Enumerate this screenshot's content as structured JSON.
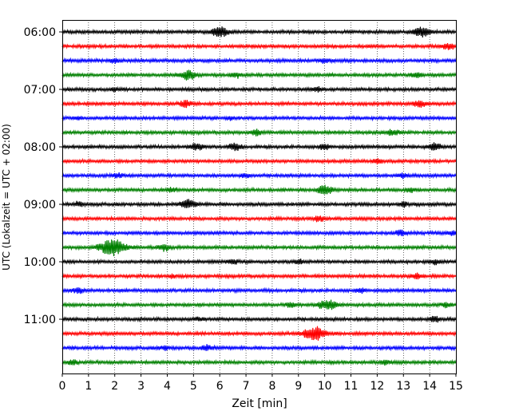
{
  "chart_data": {
    "type": "line",
    "subtype": "helicorder",
    "title": "",
    "xlabel": "Zeit  [min]",
    "ylabel": "UTC (Lokalzeit = UTC + 02:00)",
    "xlim": [
      0,
      15
    ],
    "x_ticks": [
      "0",
      "1",
      "2",
      "3",
      "4",
      "5",
      "6",
      "7",
      "8",
      "9",
      "10",
      "11",
      "12",
      "13",
      "14",
      "15"
    ],
    "y_ticks": [
      "06:00",
      "07:00",
      "08:00",
      "09:00",
      "10:00",
      "11:00"
    ],
    "start_time": "06:00",
    "trace_interval_min": 15,
    "colors": [
      "#000000",
      "#ff0000",
      "#0000ff",
      "#008000"
    ],
    "grid": "vertical dotted at each minute",
    "legend": "none",
    "traces": [
      {
        "start": "06:00",
        "color": "#000000",
        "events": [
          [
            6.0,
            1.0
          ],
          [
            13.7,
            0.9
          ]
        ]
      },
      {
        "start": "06:15",
        "color": "#ff0000",
        "events": [
          [
            14.7,
            0.6
          ]
        ]
      },
      {
        "start": "06:30",
        "color": "#0000ff",
        "events": [
          [
            2.0,
            0.4
          ],
          [
            10.0,
            0.4
          ]
        ]
      },
      {
        "start": "06:45",
        "color": "#008000",
        "events": [
          [
            4.8,
            0.9
          ],
          [
            6.6,
            0.5
          ],
          [
            13.5,
            0.5
          ]
        ]
      },
      {
        "start": "07:00",
        "color": "#000000",
        "events": [
          [
            2.0,
            0.3
          ],
          [
            9.7,
            0.4
          ]
        ]
      },
      {
        "start": "07:15",
        "color": "#ff0000",
        "events": [
          [
            4.7,
            0.6
          ],
          [
            13.6,
            0.6
          ]
        ]
      },
      {
        "start": "07:30",
        "color": "#0000ff",
        "events": [
          [
            0.6,
            0.3
          ],
          [
            6.4,
            0.3
          ]
        ]
      },
      {
        "start": "07:45",
        "color": "#008000",
        "events": [
          [
            7.4,
            0.5
          ],
          [
            12.6,
            0.5
          ]
        ]
      },
      {
        "start": "08:00",
        "color": "#000000",
        "events": [
          [
            5.1,
            0.6
          ],
          [
            6.6,
            0.6
          ],
          [
            10.0,
            0.5
          ],
          [
            14.2,
            0.6
          ]
        ]
      },
      {
        "start": "08:15",
        "color": "#ff0000",
        "events": [
          [
            12.0,
            0.4
          ]
        ]
      },
      {
        "start": "08:30",
        "color": "#0000ff",
        "events": [
          [
            2.1,
            0.4
          ],
          [
            7.0,
            0.4
          ],
          [
            13.0,
            0.4
          ]
        ]
      },
      {
        "start": "08:45",
        "color": "#008000",
        "events": [
          [
            10.0,
            0.8
          ],
          [
            4.2,
            0.4
          ],
          [
            13.3,
            0.4
          ]
        ]
      },
      {
        "start": "09:00",
        "color": "#000000",
        "events": [
          [
            4.8,
            0.8
          ],
          [
            0.6,
            0.4
          ],
          [
            13.0,
            0.4
          ]
        ]
      },
      {
        "start": "09:15",
        "color": "#ff0000",
        "events": [
          [
            9.8,
            0.5
          ]
        ]
      },
      {
        "start": "09:30",
        "color": "#0000ff",
        "events": [
          [
            12.9,
            0.5
          ],
          [
            14.9,
            0.4
          ]
        ]
      },
      {
        "start": "09:45",
        "color": "#008000",
        "events": [
          [
            1.9,
            1.6
          ],
          [
            3.9,
            0.6
          ]
        ]
      },
      {
        "start": "10:00",
        "color": "#000000",
        "events": [
          [
            6.5,
            0.4
          ],
          [
            9.0,
            0.4
          ],
          [
            14.2,
            0.4
          ]
        ]
      },
      {
        "start": "10:15",
        "color": "#ff0000",
        "events": [
          [
            4.2,
            0.3
          ],
          [
            13.5,
            0.4
          ]
        ]
      },
      {
        "start": "10:30",
        "color": "#0000ff",
        "events": [
          [
            0.6,
            0.5
          ],
          [
            11.4,
            0.4
          ]
        ]
      },
      {
        "start": "10:45",
        "color": "#008000",
        "events": [
          [
            10.1,
            1.0
          ],
          [
            8.7,
            0.4
          ],
          [
            14.6,
            0.4
          ]
        ]
      },
      {
        "start": "11:00",
        "color": "#000000",
        "events": [
          [
            14.2,
            0.5
          ],
          [
            5.2,
            0.3
          ]
        ]
      },
      {
        "start": "11:15",
        "color": "#ff0000",
        "events": [
          [
            9.6,
            1.3
          ]
        ]
      },
      {
        "start": "11:30",
        "color": "#0000ff",
        "events": [
          [
            5.5,
            0.5
          ],
          [
            3.9,
            0.4
          ]
        ]
      },
      {
        "start": "11:45",
        "color": "#008000",
        "events": [
          [
            0.4,
            0.4
          ],
          [
            12.3,
            0.4
          ]
        ]
      }
    ]
  }
}
